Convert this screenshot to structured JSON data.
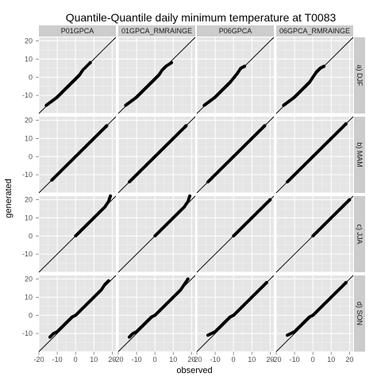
{
  "chart_data": {
    "type": "scatter",
    "title": "Quantile-Quantile daily minimum temperature at T0083",
    "xlabel": "observed",
    "ylabel": "generated",
    "xlim": [
      -20,
      22
    ],
    "ylim": [
      -20,
      22
    ],
    "x_ticks": [
      "-20",
      "-10",
      "0",
      "10",
      "20"
    ],
    "y_ticks": [
      "-10",
      "0",
      "10",
      "20"
    ],
    "reference_line": "y = x",
    "grid": true,
    "columns": [
      "P01GPCA",
      "01GPCA_RMRAINGE",
      "P06GPCA",
      "06GPCA_RMRAINGE"
    ],
    "rows": [
      "a) DJF",
      "b) MAM",
      "c) JJA",
      "d) SON"
    ],
    "colors": {
      "panel": "#e5e5e5",
      "strip": "#cccccc",
      "points": "#000000",
      "grid": "#ffffff"
    },
    "panels": [
      {
        "row": "a) DJF",
        "col": "P01GPCA",
        "x": [
          -16,
          -14,
          -12,
          -10,
          -8,
          -6,
          -4,
          -2,
          0,
          2,
          4,
          8
        ],
        "y": [
          -15.5,
          -14,
          -12.5,
          -11,
          -9,
          -7,
          -5,
          -3,
          -1,
          1,
          4,
          8
        ]
      },
      {
        "row": "a) DJF",
        "col": "01GPCA_RMRAINGE",
        "x": [
          -16,
          -14,
          -12,
          -10,
          -8,
          -6,
          -4,
          -2,
          0,
          2,
          4,
          6,
          9
        ],
        "y": [
          -15.5,
          -14,
          -12.5,
          -11,
          -9,
          -7,
          -5,
          -3,
          -1,
          1,
          4,
          6,
          8
        ]
      },
      {
        "row": "a) DJF",
        "col": "P06GPCA",
        "x": [
          -16,
          -14,
          -12,
          -10,
          -8,
          -6,
          -4,
          -2,
          0,
          2,
          4,
          6
        ],
        "y": [
          -15.5,
          -14,
          -12.5,
          -11,
          -9,
          -7,
          -5,
          -3,
          -0.5,
          2,
          5,
          6
        ]
      },
      {
        "row": "a) DJF",
        "col": "06GPCA_RMRAINGE",
        "x": [
          -16,
          -14,
          -12,
          -10,
          -8,
          -6,
          -4,
          -2,
          0,
          2,
          4,
          6
        ],
        "y": [
          -15.5,
          -14,
          -12.5,
          -11,
          -9,
          -7,
          -5,
          -3,
          0,
          3,
          5,
          6
        ]
      },
      {
        "row": "b) MAM",
        "col": "P01GPCA",
        "x": [
          -13,
          -12,
          -10,
          -8,
          -6,
          -4,
          -2,
          0,
          2,
          4,
          6,
          8,
          10,
          12,
          14,
          16,
          17
        ],
        "y": [
          -13,
          -12,
          -10,
          -8,
          -6,
          -4,
          -2,
          0,
          2,
          4,
          6,
          8,
          10,
          12,
          14,
          16,
          17
        ]
      },
      {
        "row": "b) MAM",
        "col": "01GPCA_RMRAINGE",
        "x": [
          -14,
          -12,
          -10,
          -8,
          -6,
          -4,
          -2,
          0,
          2,
          4,
          6,
          8,
          10,
          12,
          14,
          16,
          17
        ],
        "y": [
          -14,
          -12,
          -10,
          -8,
          -6,
          -4,
          -2,
          0,
          2,
          4,
          6,
          8,
          10,
          12,
          14,
          16,
          17
        ]
      },
      {
        "row": "b) MAM",
        "col": "P06GPCA",
        "x": [
          -14,
          -12,
          -10,
          -8,
          -6,
          -4,
          -2,
          0,
          2,
          4,
          6,
          8,
          10,
          12,
          14,
          16,
          17
        ],
        "y": [
          -14,
          -12,
          -10,
          -8,
          -6,
          -4,
          -2,
          0,
          2,
          4,
          6,
          8,
          10,
          12,
          14,
          16,
          17
        ]
      },
      {
        "row": "b) MAM",
        "col": "06GPCA_RMRAINGE",
        "x": [
          -14,
          -12,
          -10,
          -8,
          -6,
          -4,
          -2,
          0,
          2,
          4,
          6,
          8,
          10,
          12,
          14,
          16,
          18
        ],
        "y": [
          -14,
          -12,
          -10,
          -8,
          -6,
          -4,
          -2,
          0,
          2,
          4,
          6,
          8,
          10,
          12,
          14,
          16,
          18
        ]
      },
      {
        "row": "c) JJA",
        "col": "P01GPCA",
        "x": [
          0,
          2,
          4,
          6,
          8,
          10,
          12,
          14,
          16,
          18,
          19
        ],
        "y": [
          0,
          2,
          4,
          6,
          8,
          10,
          12,
          14,
          16,
          19,
          22
        ]
      },
      {
        "row": "c) JJA",
        "col": "01GPCA_RMRAINGE",
        "x": [
          0,
          2,
          4,
          6,
          8,
          10,
          12,
          14,
          16,
          18,
          19
        ],
        "y": [
          0,
          2,
          4,
          6,
          8,
          10,
          12,
          14,
          16,
          19,
          22
        ]
      },
      {
        "row": "c) JJA",
        "col": "P06GPCA",
        "x": [
          0,
          2,
          4,
          6,
          8,
          10,
          12,
          14,
          16,
          18,
          20
        ],
        "y": [
          0,
          2,
          4,
          6,
          8,
          10,
          12,
          14,
          16,
          18,
          20
        ]
      },
      {
        "row": "c) JJA",
        "col": "06GPCA_RMRAINGE",
        "x": [
          0,
          2,
          4,
          6,
          8,
          10,
          12,
          14,
          16,
          18,
          20
        ],
        "y": [
          0,
          2,
          4,
          6,
          8,
          10,
          12,
          14,
          16,
          18,
          20
        ]
      },
      {
        "row": "d) SON",
        "col": "P01GPCA",
        "x": [
          -14,
          -12,
          -10,
          -8,
          -6,
          -4,
          -2,
          0,
          2,
          4,
          6,
          8,
          10,
          12,
          14,
          16,
          18
        ],
        "y": [
          -12,
          -10,
          -9,
          -7,
          -5,
          -3,
          -1,
          0,
          2,
          4,
          6,
          8,
          10,
          12,
          14,
          17,
          19
        ]
      },
      {
        "row": "d) SON",
        "col": "01GPCA_RMRAINGE",
        "x": [
          -14,
          -12,
          -10,
          -8,
          -6,
          -4,
          -2,
          0,
          2,
          4,
          6,
          8,
          10,
          12,
          14,
          16,
          18
        ],
        "y": [
          -12,
          -10,
          -9,
          -7,
          -5,
          -3,
          -1,
          0,
          2,
          4,
          6,
          8,
          10,
          12,
          14,
          17,
          20
        ]
      },
      {
        "row": "d) SON",
        "col": "P06GPCA",
        "x": [
          -14,
          -12,
          -10,
          -8,
          -6,
          -4,
          -2,
          0,
          2,
          4,
          6,
          8,
          10,
          12,
          14,
          16,
          18
        ],
        "y": [
          -11,
          -10,
          -9,
          -7,
          -5,
          -3,
          -1,
          0,
          2,
          4,
          6,
          8,
          10,
          12,
          14,
          16,
          18
        ]
      },
      {
        "row": "d) SON",
        "col": "06GPCA_RMRAINGE",
        "x": [
          -14,
          -12,
          -10,
          -8,
          -6,
          -4,
          -2,
          0,
          2,
          4,
          6,
          8,
          10,
          12,
          14,
          16,
          18
        ],
        "y": [
          -11,
          -10,
          -9,
          -7,
          -5,
          -3,
          -1,
          0,
          2,
          4,
          6,
          8,
          10,
          12,
          14,
          16,
          18
        ]
      }
    ]
  }
}
